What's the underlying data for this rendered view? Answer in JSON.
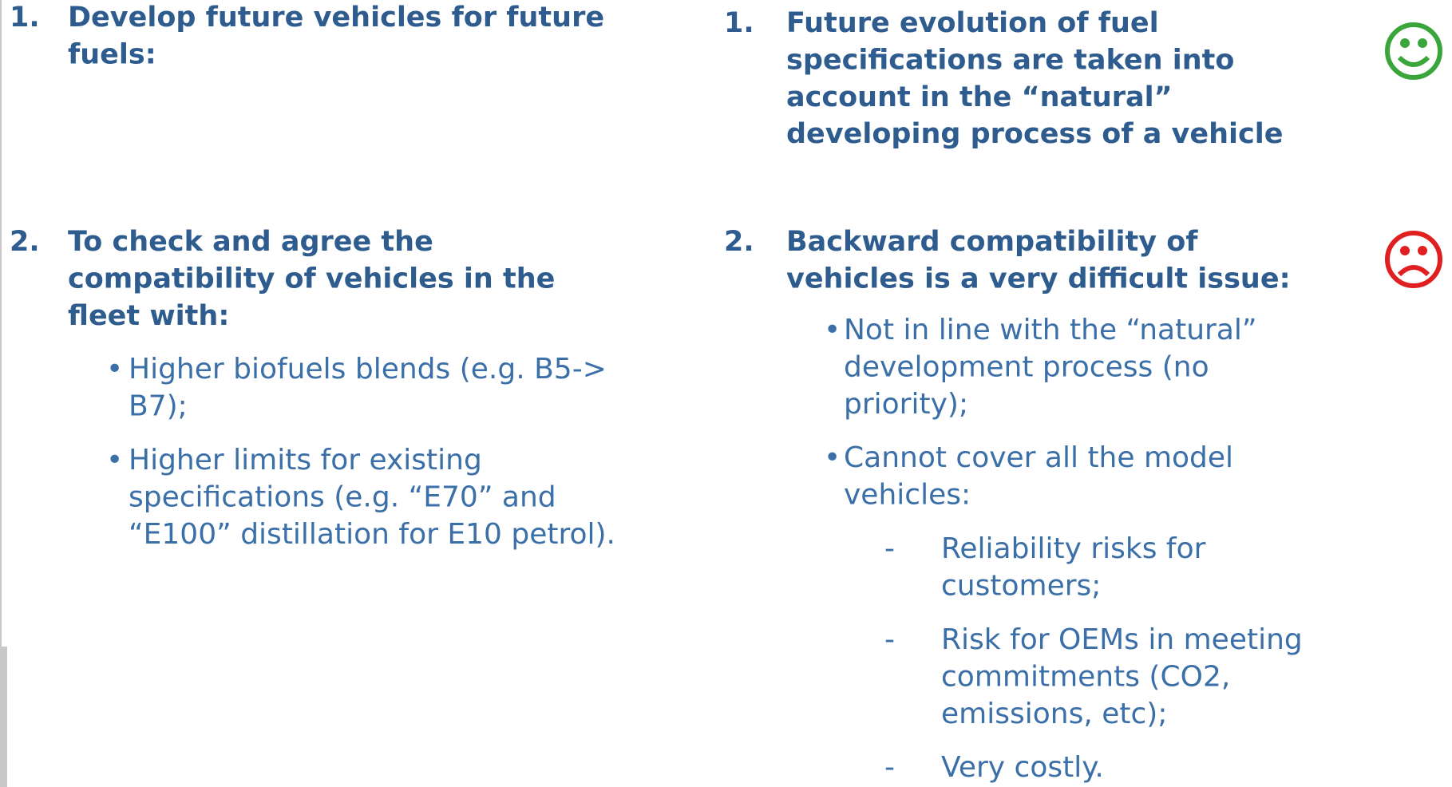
{
  "left": {
    "items": [
      {
        "number": "1.",
        "lines": [
          "Develop future vehicles for future",
          "fuels:"
        ]
      },
      {
        "number": "2.",
        "lines": [
          "To check and agree the",
          "compatibility of vehicles in the",
          "fleet with:"
        ],
        "bullets": [
          {
            "marker": "•",
            "lines": [
              "Higher biofuels blends (e.g. B5->",
              "B7);"
            ]
          },
          {
            "marker": "•",
            "lines": [
              "Higher limits for existing",
              "specifications (e.g. “E70” and",
              "“E100” distillation for E10 petrol)."
            ]
          }
        ]
      }
    ]
  },
  "right": {
    "items": [
      {
        "number": "1.",
        "lines": [
          "Future evolution of fuel",
          "specifications are taken into",
          "account in the “natural”",
          "developing process of a vehicle"
        ]
      },
      {
        "number": "2.",
        "lines": [
          "Backward compatibility of",
          "vehicles is a very difficult issue:"
        ],
        "bullets": [
          {
            "marker": "•",
            "lines": [
              "Not in line with the “natural”",
              "development process (no",
              "priority);"
            ]
          },
          {
            "marker": "•",
            "lines": [
              "Cannot cover all the model",
              "vehicles:"
            ],
            "sub": [
              {
                "marker": "-",
                "lines": [
                  "Reliability risks for",
                  "customers;"
                ]
              },
              {
                "marker": "-",
                "lines": [
                  "Risk for OEMs in meeting",
                  "commitments (CO2,",
                  "emissions, etc);"
                ]
              },
              {
                "marker": "-",
                "lines": [
                  "Very costly."
                ]
              }
            ]
          }
        ]
      }
    ]
  }
}
